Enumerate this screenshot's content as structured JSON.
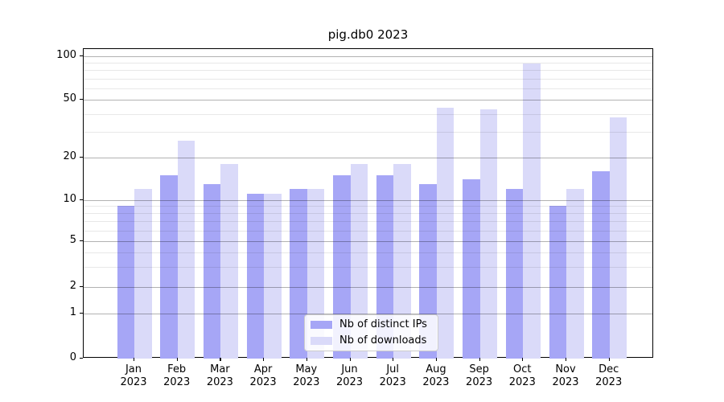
{
  "title": "pig.db0 2023",
  "colors": {
    "ips": "#a6a6f6",
    "downloads": "#dadaf9",
    "background": "#ffffff",
    "axis": "#000000"
  },
  "legend": {
    "items": [
      {
        "label": "Nb of distinct IPs",
        "series": "ips"
      },
      {
        "label": "Nb of downloads",
        "series": "downloads"
      }
    ]
  },
  "chart_data": {
    "type": "bar",
    "title": "pig.db0 2023",
    "categories": [
      "Jan",
      "Feb",
      "Mar",
      "Apr",
      "May",
      "Jun",
      "Jul",
      "Aug",
      "Sep",
      "Oct",
      "Nov",
      "Dec"
    ],
    "x_year": "2023",
    "series": [
      {
        "name": "Nb of distinct IPs",
        "color_key": "ips",
        "values": [
          9,
          15,
          13,
          11,
          12,
          15,
          15,
          13,
          14,
          12,
          9,
          16
        ]
      },
      {
        "name": "Nb of downloads",
        "color_key": "downloads",
        "values": [
          12,
          26,
          18,
          11,
          12,
          18,
          18,
          44,
          43,
          89,
          12,
          38
        ]
      }
    ],
    "yscale": "symlog",
    "ylim": [
      0,
      110
    ],
    "y_major_ticks": [
      0,
      1,
      2,
      5,
      10,
      20,
      50,
      100
    ],
    "y_minor_ticks": [
      3,
      4,
      6,
      7,
      8,
      9,
      30,
      40,
      60,
      70,
      80,
      90
    ],
    "grid": true,
    "legend_position": "lower center"
  }
}
